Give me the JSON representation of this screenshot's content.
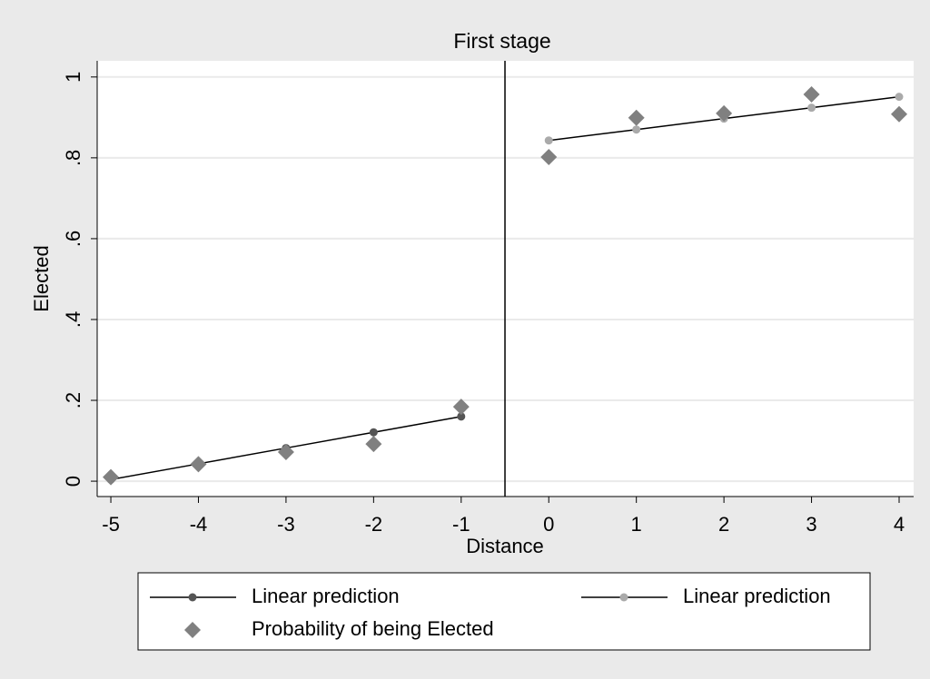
{
  "chart_data": {
    "type": "line",
    "title": "First stage",
    "x_label": "Distance",
    "y_label": "Elected",
    "xlim": [
      -5.156,
      4.166
    ],
    "ylim": [
      -0.038,
      1.04
    ],
    "xticks": [
      -5,
      -4,
      -3,
      -2,
      -1,
      0,
      1,
      2,
      3,
      4
    ],
    "yticks": [
      0,
      {
        "value": 0.2,
        "label": ".2"
      },
      {
        "value": 0.4,
        "label": ".4"
      },
      {
        "value": 0.6,
        "label": ".6"
      },
      {
        "value": 0.8,
        "label": ".8"
      },
      1
    ],
    "grid": true,
    "vline": -0.5,
    "series": [
      {
        "name": "Linear prediction",
        "kind": "line",
        "color": "#555555",
        "line_color": "#000000",
        "x": [
          -5,
          -4,
          -3,
          -2,
          -1
        ],
        "values": [
          0.004,
          0.043,
          0.082,
          0.121,
          0.16
        ]
      },
      {
        "name": "Linear prediction",
        "kind": "line",
        "color": "#aaaaaa",
        "line_color": "#000000",
        "x": [
          0,
          1,
          2,
          3,
          4
        ],
        "values": [
          0.843,
          0.87,
          0.897,
          0.924,
          0.951
        ]
      },
      {
        "name": "Probability of being Elected",
        "kind": "diamond",
        "color": "#808080",
        "x": [
          -5,
          -4,
          -3,
          -2,
          -1,
          0,
          1,
          2,
          3,
          4
        ],
        "values": [
          0.01,
          0.042,
          0.072,
          0.092,
          0.184,
          0.802,
          0.899,
          0.91,
          0.957,
          0.908
        ]
      }
    ]
  }
}
